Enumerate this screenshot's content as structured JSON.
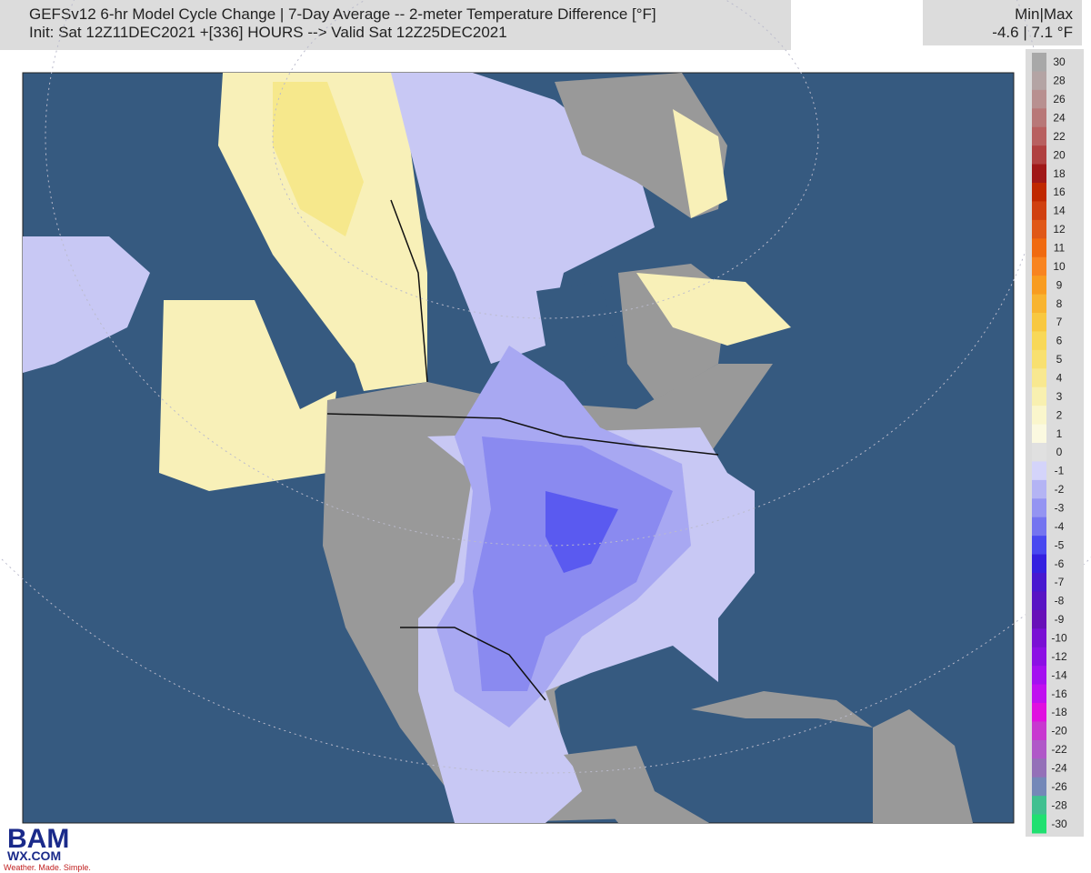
{
  "header": {
    "title_line1": "GEFSv12 6-hr Model Cycle Change | 7-Day Average -- 2-meter Temperature Difference [°F]",
    "title_line2": "Init: Sat 12Z11DEC2021 +[336] HOURS --> Valid Sat 12Z25DEC2021"
  },
  "minmax": {
    "label": "Min|Max",
    "value": "-4.6 | 7.1 °F"
  },
  "colorbar": {
    "levels": [
      30,
      28,
      26,
      24,
      22,
      20,
      18,
      16,
      14,
      12,
      11,
      10,
      9,
      8,
      7,
      6,
      5,
      4,
      3,
      2,
      1,
      0,
      -1,
      -2,
      -3,
      -4,
      -5,
      -6,
      -7,
      -8,
      -9,
      -10,
      -12,
      -14,
      -16,
      -18,
      -20,
      -22,
      -24,
      -26,
      -28,
      -30
    ],
    "colors": [
      "#a8a8a8",
      "#b4a4a4",
      "#b89090",
      "#b87878",
      "#b86060",
      "#b04040",
      "#a01818",
      "#c02800",
      "#d04010",
      "#e05818",
      "#f06a10",
      "#f88420",
      "#f89c20",
      "#f8b430",
      "#f8c840",
      "#f8d858",
      "#f8e070",
      "#f8e890",
      "#f8f0b0",
      "#faf6cc",
      "#fbf9e0",
      "#e0e0e0",
      "#d4d4fa",
      "#b4b4f4",
      "#9494f2",
      "#7474f0",
      "#4848f0",
      "#3420e0",
      "#4818d0",
      "#5814c4",
      "#6810b8",
      "#7a10d4",
      "#8c10e4",
      "#a410f0",
      "#c010f0",
      "#e010e0",
      "#c838d0",
      "#b058c8",
      "#9470b8",
      "#7488b8",
      "#40c090",
      "#20e070"
    ]
  },
  "logo": {
    "brand": "BAM",
    "site": "WX.COM",
    "tagline": "Weather. Made. Simple."
  }
}
